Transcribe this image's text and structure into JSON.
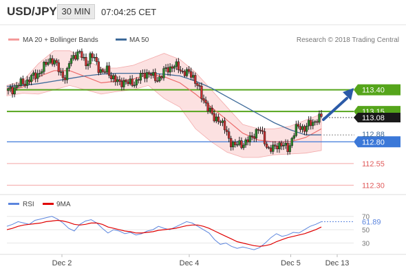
{
  "header": {
    "symbol": "USD/JPY",
    "timeframe": "30 MIN",
    "time": "07:04:25 CET"
  },
  "legend": {
    "ma20": "MA 20 + Bollinger Bands",
    "ma50": "MA 50",
    "copyright": "Research © 2018 Trading Central",
    "rsi": "RSI",
    "ma9": "9MA"
  },
  "colors": {
    "candle": "#1a1a1a",
    "band": "#f9c8c8",
    "ma20": "#ec6b6b",
    "ma50": "#3d6a99",
    "resistance": "#55a51b",
    "pivot": "#3b78d8",
    "support": "#f4a4a4",
    "arrow": "#2b5aa7",
    "rsi": "#5b85de",
    "rsi_ma": "#e00000"
  },
  "chart_data": [
    {
      "type": "candlestick",
      "title": "USD/JPY 30 MIN",
      "ylim": [
        112.2,
        113.88
      ],
      "price_labels": [
        "113.40",
        "113.15",
        "113.08",
        "112.88",
        "112.80",
        "112.55",
        "112.30"
      ],
      "levels": [
        {
          "value": 113.4,
          "label": "113.40",
          "kind": "resistance"
        },
        {
          "value": 113.15,
          "label": "113.15",
          "kind": "resistance"
        },
        {
          "value": 112.8,
          "label": "112.80",
          "kind": "pivot"
        },
        {
          "value": 112.55,
          "label": "112.55",
          "kind": "support"
        },
        {
          "value": 112.3,
          "label": "112.30",
          "kind": "support"
        }
      ],
      "current_price": {
        "value": 113.08,
        "label": "113.08"
      },
      "ma50_marker": {
        "value": 112.88,
        "label": "112.88"
      },
      "close_path": [
        113.39,
        113.4,
        113.45,
        113.47,
        113.48,
        113.52,
        113.55,
        113.58,
        113.62,
        113.68,
        113.76,
        113.73,
        113.65,
        113.58,
        113.53,
        113.75,
        113.8,
        113.82,
        113.78,
        113.7,
        113.78,
        113.76,
        113.65,
        113.58,
        113.64,
        113.56,
        113.5,
        113.48,
        113.5,
        113.47,
        113.48,
        113.49,
        113.55,
        113.58,
        113.6,
        113.55,
        113.52,
        113.55,
        113.62,
        113.65,
        113.68,
        113.66,
        113.62,
        113.6,
        113.58,
        113.55,
        113.45,
        113.3,
        113.25,
        113.15,
        113.05,
        113.08,
        113.0,
        112.9,
        112.8,
        112.75,
        112.78,
        112.78,
        112.8,
        112.85,
        112.92,
        112.94,
        112.85,
        112.72,
        112.7,
        112.76,
        112.78,
        112.74,
        112.72,
        112.86,
        112.96,
        112.98,
        112.95,
        113.0,
        113.03,
        113.06,
        113.08
      ],
      "ma50_path": [
        113.44,
        113.45,
        113.47,
        113.5,
        113.53,
        113.56,
        113.58,
        113.59,
        113.59,
        113.59,
        113.58,
        113.56,
        113.5,
        113.42,
        113.32,
        113.22,
        113.12,
        113.02,
        112.94,
        112.88,
        112.88
      ],
      "ma20_path": [
        113.39,
        113.43,
        113.55,
        113.62,
        113.62,
        113.55,
        113.48,
        113.5,
        113.52,
        113.58,
        113.55,
        113.48,
        113.35,
        113.2,
        113.05,
        112.9,
        112.82,
        112.8,
        112.8,
        112.85,
        112.95
      ],
      "band_upper": [
        113.45,
        113.5,
        113.7,
        113.85,
        113.85,
        113.75,
        113.65,
        113.65,
        113.68,
        113.75,
        113.82,
        113.75,
        113.6,
        113.4,
        113.2,
        113.0,
        112.95,
        112.95,
        112.98,
        113.05,
        113.12
      ],
      "band_lower": [
        113.33,
        113.36,
        113.35,
        113.4,
        113.45,
        113.4,
        113.35,
        113.38,
        113.4,
        113.45,
        113.3,
        113.2,
        112.95,
        112.8,
        112.68,
        112.62,
        112.62,
        112.65,
        112.66,
        112.67,
        112.7
      ],
      "x_labels": [
        {
          "label": "Dec 2",
          "pos": 0.16
        },
        {
          "label": "Dec 4",
          "pos": 0.53
        },
        {
          "label": "Dec 5",
          "pos": 0.825
        },
        {
          "label": "Dec 13",
          "pos": 0.96
        }
      ]
    },
    {
      "type": "line",
      "title": "RSI",
      "ylim": [
        15,
        80
      ],
      "y_ticks": [
        70,
        50,
        30
      ],
      "value_label": "61.89",
      "series": [
        {
          "name": "RSI",
          "values": [
            55,
            58,
            62,
            60,
            58,
            64,
            66,
            68,
            70,
            66,
            60,
            52,
            48,
            58,
            63,
            65,
            60,
            52,
            45,
            50,
            48,
            44,
            46,
            42,
            44,
            48,
            50,
            55,
            52,
            50,
            54,
            58,
            62,
            60,
            55,
            50,
            45,
            35,
            28,
            30,
            25,
            22,
            24,
            22,
            20,
            23,
            30,
            38,
            44,
            40,
            42,
            46,
            45,
            50,
            55,
            58,
            62
          ]
        },
        {
          "name": "9MA",
          "values": [
            50,
            52,
            55,
            57,
            58,
            59,
            60,
            62,
            63,
            64,
            63,
            61,
            58,
            57,
            58,
            60,
            60,
            58,
            54,
            52,
            50,
            48,
            47,
            45,
            45,
            46,
            47,
            49,
            50,
            51,
            52,
            54,
            56,
            57,
            57,
            55,
            52,
            48,
            44,
            40,
            36,
            32,
            30,
            28,
            26,
            25,
            26,
            28,
            32,
            35,
            38,
            40,
            42,
            44,
            47,
            50,
            54
          ]
        }
      ]
    }
  ]
}
